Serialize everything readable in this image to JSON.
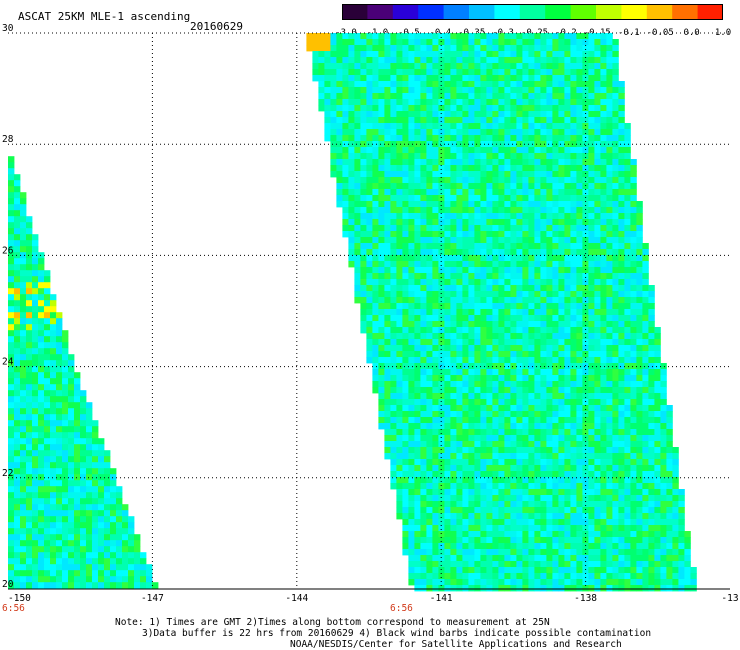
{
  "header": {
    "title": "ASCAT 25KM MLE-1 ascending",
    "date": "20160629"
  },
  "colorbar": {
    "labels": [
      "-3.0",
      "-1.0",
      "-0.5",
      "-0.4",
      "-0.35",
      "-0.3",
      "-0.25",
      "-0.2",
      "-0.15",
      "-0.1",
      "-0.05",
      "0.0",
      "1.0"
    ],
    "colors": [
      "#2a0038",
      "#4a0078",
      "#2a00d8",
      "#0030ff",
      "#0080ff",
      "#00c0ff",
      "#00ffff",
      "#00ffa0",
      "#00ff40",
      "#60ff00",
      "#c0ff00",
      "#ffff00",
      "#ffc000",
      "#ff7000",
      "#ff2000"
    ]
  },
  "axes": {
    "x_ticks": [
      "-150",
      "-147",
      "-144",
      "-141",
      "-138",
      "-13"
    ],
    "y_ticks": [
      "30",
      "28",
      "26",
      "24",
      "22",
      "20"
    ],
    "time_labels": [
      "6:56",
      "6:56"
    ]
  },
  "notes": {
    "line1": "Note: 1) Times are GMT 2)Times along bottom correspond to measurement at 25N",
    "line2": "3)Data buffer is 22 hrs from 20160629 4) Black wind barbs indicate possible contamination",
    "line3": "NOAA/NESDIS/Center for Satellite Applications and Research"
  },
  "map_data": {
    "lon_range": [
      -150,
      -135
    ],
    "lat_range": [
      20,
      30
    ],
    "swaths": [
      {
        "name": "west-swath",
        "corners": [
          [
            -150,
            28
          ],
          [
            -150,
            20
          ],
          [
            -146.9,
            20
          ],
          [
            -148.6,
            24.0
          ]
        ]
      },
      {
        "name": "east-swath",
        "corners": [
          [
            -143.8,
            30
          ],
          [
            -141.6,
            20
          ],
          [
            -135.7,
            20
          ],
          [
            -137.4,
            30
          ]
        ]
      }
    ]
  }
}
